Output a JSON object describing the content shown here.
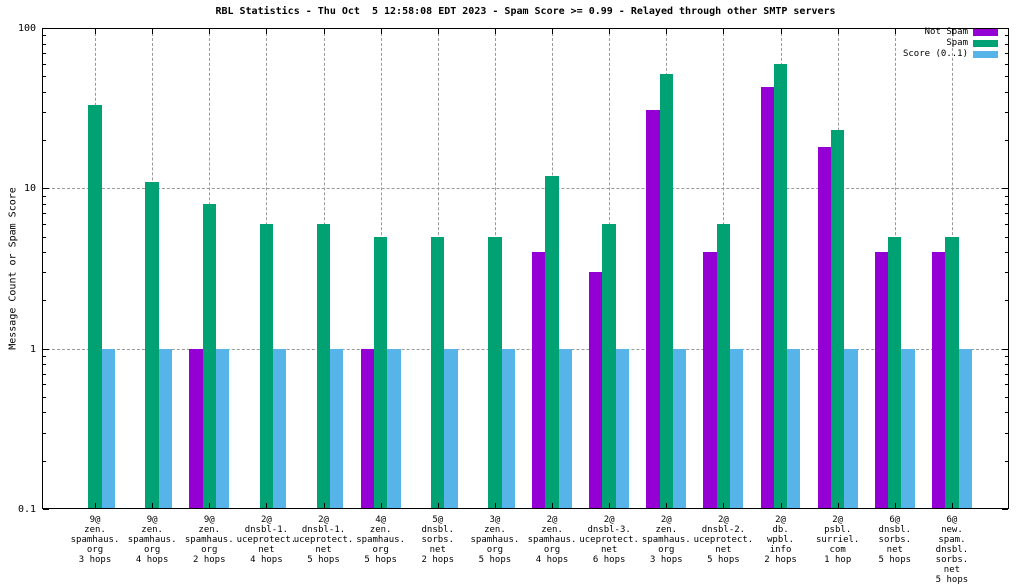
{
  "chart_data": {
    "type": "bar",
    "title": "RBL Statistics - Thu Oct  5 12:58:08 EDT 2023 - Spam Score >= 0.99 - Relayed through other SMTP servers",
    "ylabel": "Message Count or Spam Score",
    "xlabel": "",
    "y_scale": "log",
    "ylim": [
      0.1,
      100
    ],
    "y_major_ticks": [
      100,
      10,
      1,
      0.1
    ],
    "grid": true,
    "legend_position": "top-right-inside",
    "categories": [
      [
        "9@",
        "zen.",
        "spamhaus.",
        "org",
        "3 hops"
      ],
      [
        "9@",
        "zen.",
        "spamhaus.",
        "org",
        "4 hops"
      ],
      [
        "9@",
        "zen.",
        "spamhaus.",
        "org",
        "2 hops"
      ],
      [
        "2@",
        "dnsbl-1.",
        "uceprotect.",
        "net",
        "4 hops"
      ],
      [
        "2@",
        "dnsbl-1.",
        "uceprotect.",
        "net",
        "5 hops"
      ],
      [
        "4@",
        "zen.",
        "spamhaus.",
        "org",
        "5 hops"
      ],
      [
        "5@",
        "dnsbl.",
        "sorbs.",
        "net",
        "2 hops"
      ],
      [
        "3@",
        "zen.",
        "spamhaus.",
        "org",
        "5 hops"
      ],
      [
        "2@",
        "zen.",
        "spamhaus.",
        "org",
        "4 hops"
      ],
      [
        "2@",
        "dnsbl-3.",
        "uceprotect.",
        "net",
        "6 hops"
      ],
      [
        "2@",
        "zen.",
        "spamhaus.",
        "org",
        "3 hops"
      ],
      [
        "2@",
        "dnsbl-2.",
        "uceprotect.",
        "net",
        "5 hops"
      ],
      [
        "2@",
        "db.",
        "wpbl.",
        "info",
        "2 hops"
      ],
      [
        "2@",
        "psbl.",
        "surriel.",
        "com",
        "1 hop"
      ],
      [
        "6@",
        "dnsbl.",
        "sorbs.",
        "net",
        "5 hops"
      ],
      [
        "6@",
        "new.",
        "spam.",
        "dnsbl.",
        "sorbs.",
        "net",
        "5 hops"
      ]
    ],
    "series": [
      {
        "name": "Not Spam",
        "color": "#9400d3",
        "values": [
          null,
          null,
          1,
          null,
          null,
          1,
          null,
          null,
          4,
          3,
          31,
          4,
          43,
          18,
          4,
          4
        ]
      },
      {
        "name": "Spam",
        "color": "#00a273",
        "values": [
          33,
          11,
          8,
          6,
          6,
          5,
          5,
          5,
          12,
          6,
          52,
          6,
          60,
          23,
          5,
          5
        ]
      },
      {
        "name": "Score (0..1)",
        "color": "#56b4e9",
        "values": [
          0.99,
          0.99,
          0.99,
          0.99,
          0.99,
          0.99,
          0.99,
          0.99,
          0.99,
          0.99,
          0.99,
          0.99,
          0.99,
          0.99,
          0.99,
          0.99
        ]
      }
    ]
  }
}
